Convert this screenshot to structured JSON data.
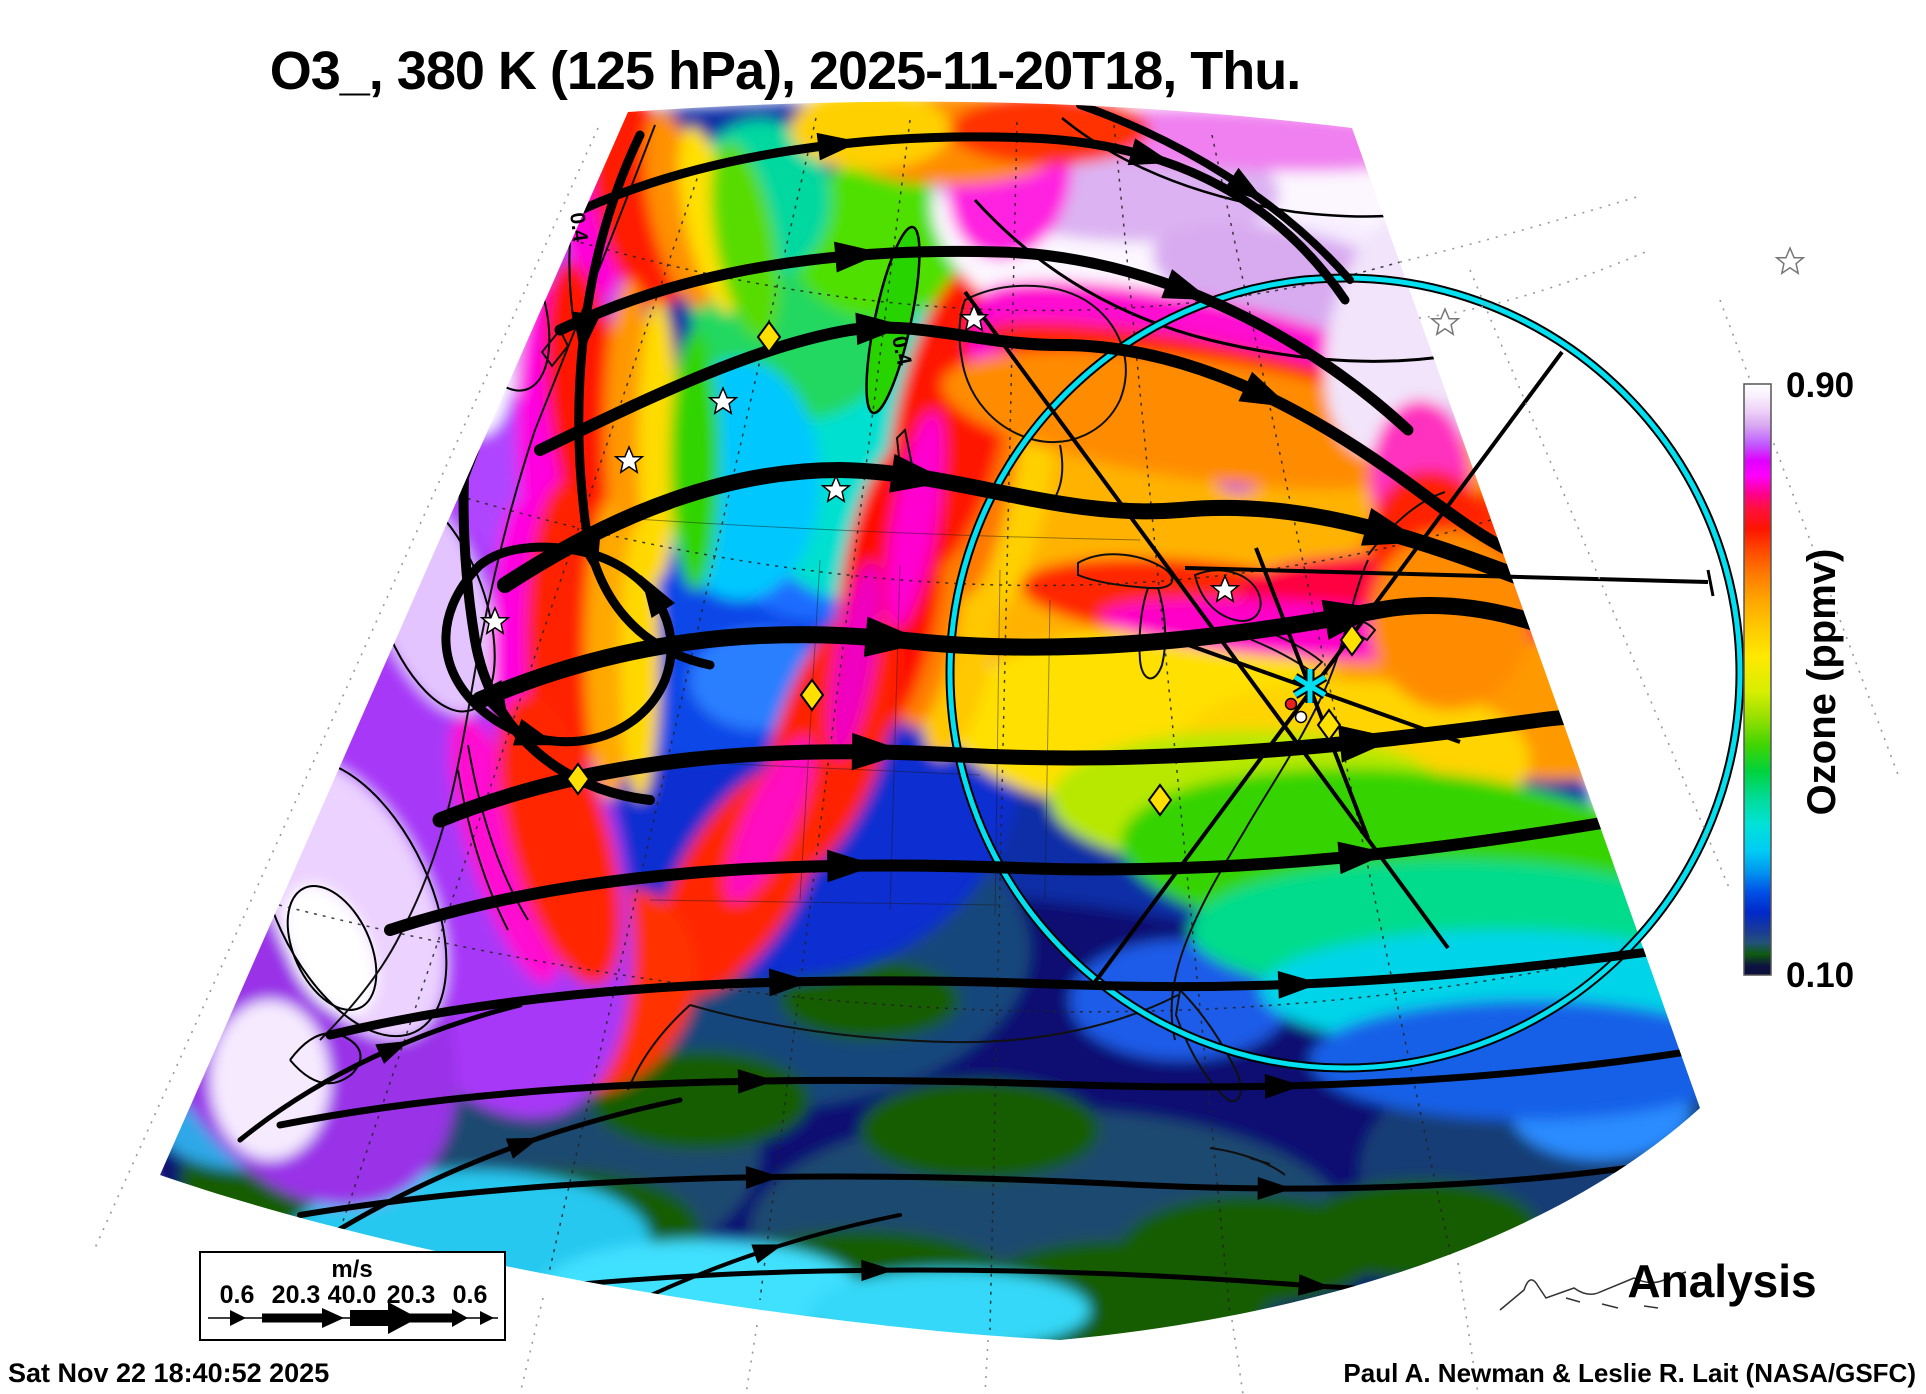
{
  "title": "O3_, 380 K (125 hPa), 2025-11-20T18, Thu.",
  "colorbar": {
    "max_label": "0.90",
    "min_label": "0.10",
    "axis_label": "Ozone (ppmv)"
  },
  "wind_legend": {
    "units": "m/s",
    "values": [
      "0.6",
      "20.3",
      "40.0",
      "20.3",
      "0.6"
    ]
  },
  "map": {
    "contour_label_1": "0.4",
    "contour_label_2": "0.4"
  },
  "annotations": {
    "mode": "Analysis",
    "generated": "Sat Nov 22 18:40:52 2025",
    "credit": "Paul A. Newman & Leslie R. Lait (NASA/GSFC)"
  },
  "chart_data": {
    "type": "heatmap",
    "title": "O3_, 380 K (125 hPa), 2025-11-20T18, Thu.",
    "field": "Ozone (ppmv)",
    "colorbar_min": 0.1,
    "colorbar_max": 0.9,
    "legend_position": "right",
    "wind_scale_ms": [
      0.6,
      20.3,
      40.0,
      20.3,
      0.6
    ],
    "contour_labels": [
      0.4,
      0.4
    ],
    "overlay": "wind streamlines (thickness = speed), analysis product"
  }
}
